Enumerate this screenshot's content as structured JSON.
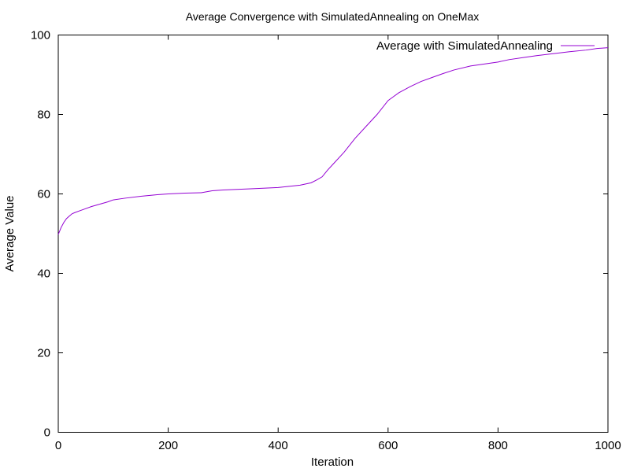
{
  "chart_data": {
    "type": "line",
    "title": "Average Convergence with SimulatedAnnealing on OneMax",
    "xlabel": "Iteration",
    "ylabel": "Average Value",
    "xlim": [
      0,
      1000
    ],
    "ylim": [
      0,
      100
    ],
    "xticks": [
      0,
      200,
      400,
      600,
      800,
      1000
    ],
    "yticks": [
      0,
      20,
      40,
      60,
      80,
      100
    ],
    "grid": false,
    "legend_position": "top-right",
    "series": [
      {
        "name": "Average with SimulatedAnnealing",
        "color": "#9400d3",
        "x": [
          0,
          5,
          10,
          15,
          20,
          25,
          30,
          40,
          50,
          60,
          70,
          80,
          90,
          100,
          120,
          150,
          180,
          200,
          230,
          260,
          280,
          300,
          350,
          400,
          440,
          460,
          470,
          480,
          490,
          500,
          520,
          540,
          560,
          580,
          600,
          610,
          620,
          640,
          660,
          680,
          700,
          720,
          750,
          780,
          800,
          820,
          850,
          870,
          900,
          930,
          960,
          980,
          1000
        ],
        "y": [
          49.8,
          51.5,
          52.8,
          53.8,
          54.4,
          55.0,
          55.3,
          55.8,
          56.3,
          56.8,
          57.2,
          57.6,
          58.0,
          58.5,
          58.9,
          59.4,
          59.8,
          60.0,
          60.2,
          60.3,
          60.8,
          61.0,
          61.3,
          61.6,
          62.2,
          62.8,
          63.5,
          64.3,
          66.0,
          67.5,
          70.5,
          74.0,
          77.0,
          80.0,
          83.5,
          84.5,
          85.5,
          87.0,
          88.3,
          89.3,
          90.3,
          91.2,
          92.2,
          92.8,
          93.2,
          93.8,
          94.4,
          94.8,
          95.3,
          95.8,
          96.2,
          96.6,
          96.8
        ]
      }
    ]
  }
}
